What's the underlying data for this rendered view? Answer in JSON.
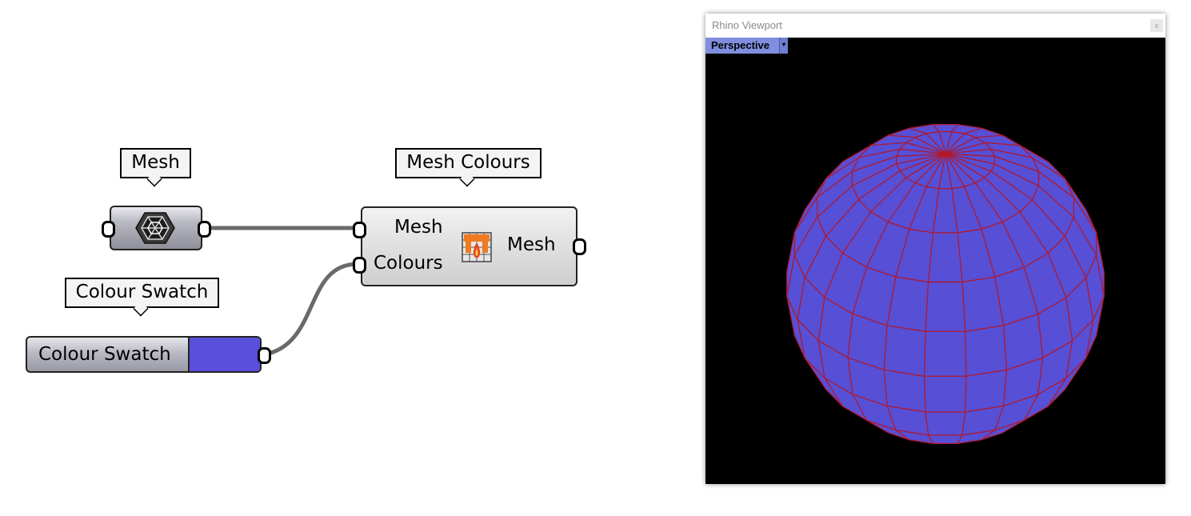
{
  "tooltips": {
    "mesh": "Mesh",
    "mesh_colours": "Mesh Colours",
    "colour_swatch": "Colour Swatch"
  },
  "mesh_colours": {
    "input_mesh": "Mesh",
    "input_colours": "Colours",
    "output_mesh": "Mesh"
  },
  "colour_swatch": {
    "label": "Colour Swatch",
    "color": "#5a4fdc"
  },
  "viewport": {
    "title": "Rhino Viewport",
    "close_glyph": "x",
    "view_name": "Perspective",
    "dropdown_glyph": "▾",
    "background": "#000000",
    "mesh_fill": "#574fd6",
    "mesh_edges": "#b0182c"
  },
  "icons": {
    "mesh_param": "mesh-sphere-icon",
    "mesh_colours": "mesh-colours-icon"
  }
}
